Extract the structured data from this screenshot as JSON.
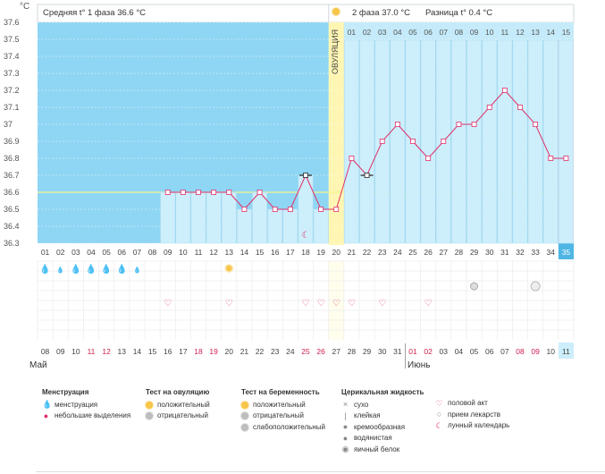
{
  "header": {
    "unit": "°C",
    "phase1": "Средняя t° 1 фаза 36.6 °C",
    "phase2": "2 фаза 37.0 °C",
    "difference": "Разница t° 0.4 °C"
  },
  "ovulation_label": "ОВУЛЯЦИЯ",
  "chart_data": {
    "type": "line",
    "y_ticks": [
      "36.3",
      "36.4",
      "36.5",
      "36.6",
      "36.7",
      "36.8",
      "36.9",
      "37",
      "37.1",
      "37.2",
      "37.3",
      "37.4",
      "37.5",
      "37.6"
    ],
    "ylim": [
      36.3,
      37.6
    ],
    "cycle_days": [
      "01",
      "02",
      "03",
      "04",
      "05",
      "06",
      "07",
      "08",
      "09",
      "10",
      "11",
      "12",
      "13",
      "14",
      "15",
      "16",
      "17",
      "18",
      "19",
      "20",
      "21",
      "22",
      "23",
      "24",
      "25",
      "26",
      "27",
      "28",
      "29",
      "30",
      "31",
      "32",
      "33",
      "34",
      "35"
    ],
    "top_day_labels": [
      "01",
      "02",
      "03",
      "04",
      "05",
      "06",
      "07",
      "08",
      "09",
      "10",
      "11",
      "12",
      "13",
      "14",
      "15"
    ],
    "temperature_series": [
      {
        "day": 9,
        "t": 36.6
      },
      {
        "day": 10,
        "t": 36.6
      },
      {
        "day": 11,
        "t": 36.6
      },
      {
        "day": 12,
        "t": 36.6
      },
      {
        "day": 13,
        "t": 36.6
      },
      {
        "day": 14,
        "t": 36.5
      },
      {
        "day": 15,
        "t": 36.6
      },
      {
        "day": 16,
        "t": 36.5
      },
      {
        "day": 17,
        "t": 36.5
      },
      {
        "day": 18,
        "t": 36.7
      },
      {
        "day": 19,
        "t": 36.5
      },
      {
        "day": 20,
        "t": 36.5
      },
      {
        "day": 21,
        "t": 36.8
      },
      {
        "day": 22,
        "t": 36.7
      },
      {
        "day": 23,
        "t": 36.9
      },
      {
        "day": 24,
        "t": 37.0
      },
      {
        "day": 25,
        "t": 36.9
      },
      {
        "day": 26,
        "t": 36.8
      },
      {
        "day": 27,
        "t": 36.9
      },
      {
        "day": 28,
        "t": 37.0
      },
      {
        "day": 29,
        "t": 37.0
      },
      {
        "day": 30,
        "t": 37.1
      },
      {
        "day": 31,
        "t": 37.2
      },
      {
        "day": 32,
        "t": 37.1
      },
      {
        "day": 33,
        "t": 37.0
      },
      {
        "day": 34,
        "t": 36.8
      },
      {
        "day": 35,
        "t": 36.8
      }
    ],
    "excluded_days": [
      18,
      22
    ],
    "coverline": 36.6,
    "ovulation_day": 20,
    "current_day": 35,
    "menstruation_days": [
      1,
      2,
      3,
      4,
      5,
      6,
      7
    ],
    "light_discharge_days": [
      2,
      7
    ],
    "ovulation_test_positive_days": [
      13
    ],
    "intercourse_days": [
      9,
      13,
      18,
      19,
      20,
      21,
      23,
      26
    ],
    "moon_days": [
      18
    ],
    "pregnancy_test_days": [
      29
    ],
    "medication_days": [
      33
    ],
    "calendar_dates": [
      "08",
      "09",
      "10",
      "11",
      "12",
      "13",
      "14",
      "15",
      "16",
      "17",
      "18",
      "19",
      "20",
      "21",
      "22",
      "23",
      "24",
      "25",
      "26",
      "27",
      "28",
      "29",
      "30",
      "31",
      "01",
      "02",
      "03",
      "04",
      "05",
      "06",
      "07",
      "08",
      "09",
      "10",
      "11"
    ],
    "red_date_indices": [
      3,
      4,
      10,
      11,
      17,
      18,
      24,
      25,
      31,
      32
    ],
    "months": [
      "Май",
      "Июнь"
    ],
    "june_start_index": 24
  },
  "legend": {
    "menstruation": {
      "title": "Менструация",
      "items": [
        "менструация",
        "небольшие выделения"
      ]
    },
    "ovulation_test": {
      "title": "Тест на овуляцию",
      "items": [
        "положительный",
        "отрицательный"
      ]
    },
    "pregnancy_test": {
      "title": "Тест на беременность",
      "items": [
        "положительный",
        "отрицательный",
        "слабоположительный"
      ]
    },
    "cervical_fluid": {
      "title": "Церикальная жидкость",
      "items": [
        "сухо",
        "клейкая",
        "кремообразная",
        "водянистая",
        "яичный белок"
      ]
    },
    "other": {
      "items": [
        "половой акт",
        "прием лекарств",
        "лунный календарь"
      ]
    }
  },
  "colors": {
    "sky": "#8fd6f4",
    "bar": "#cdeefb",
    "ovulation": "#fff6b3",
    "current": "#fbb9c8",
    "line": "#e0306a",
    "red_date": "#d0204f"
  }
}
